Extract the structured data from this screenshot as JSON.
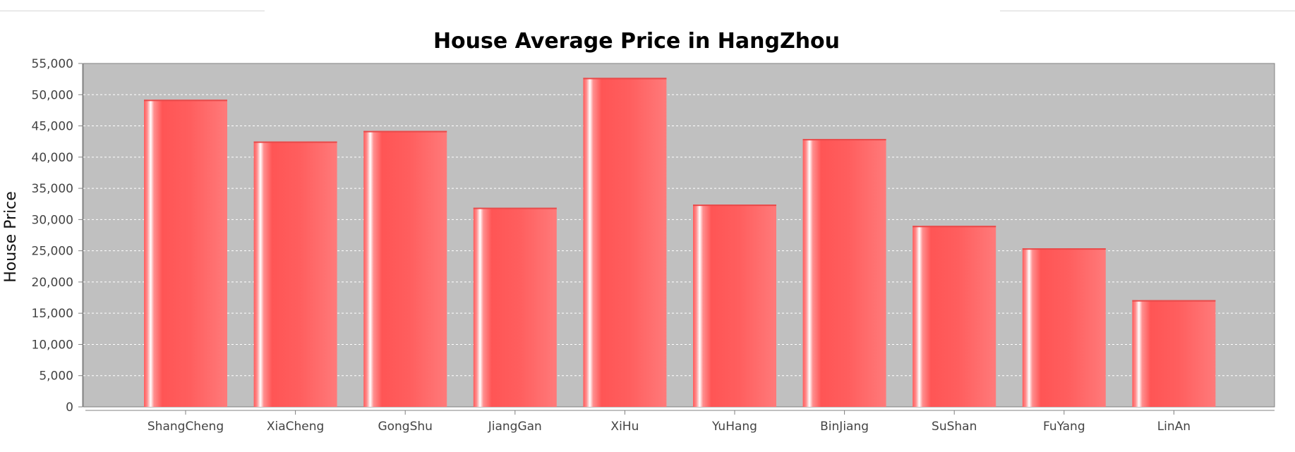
{
  "chart_data": {
    "type": "bar",
    "title": "House Average Price in HangZhou",
    "xlabel": "",
    "ylabel": "House Price",
    "categories": [
      "ShangCheng",
      "XiaCheng",
      "GongShu",
      "JiangGan",
      "XiHu",
      "YuHang",
      "BinJiang",
      "SuShan",
      "FuYang",
      "LinAn"
    ],
    "values": [
      49200,
      42500,
      44200,
      31900,
      52700,
      32400,
      42900,
      29000,
      25400,
      17100
    ],
    "ylim": [
      0,
      55000
    ],
    "ytick_step": 5000,
    "grid": true,
    "legend": "none",
    "colors": {
      "plot_background": "#c0c0c0",
      "bar": "#ff5555",
      "bar_highlight": "#ffffff",
      "gridline": "#ffffff"
    }
  }
}
